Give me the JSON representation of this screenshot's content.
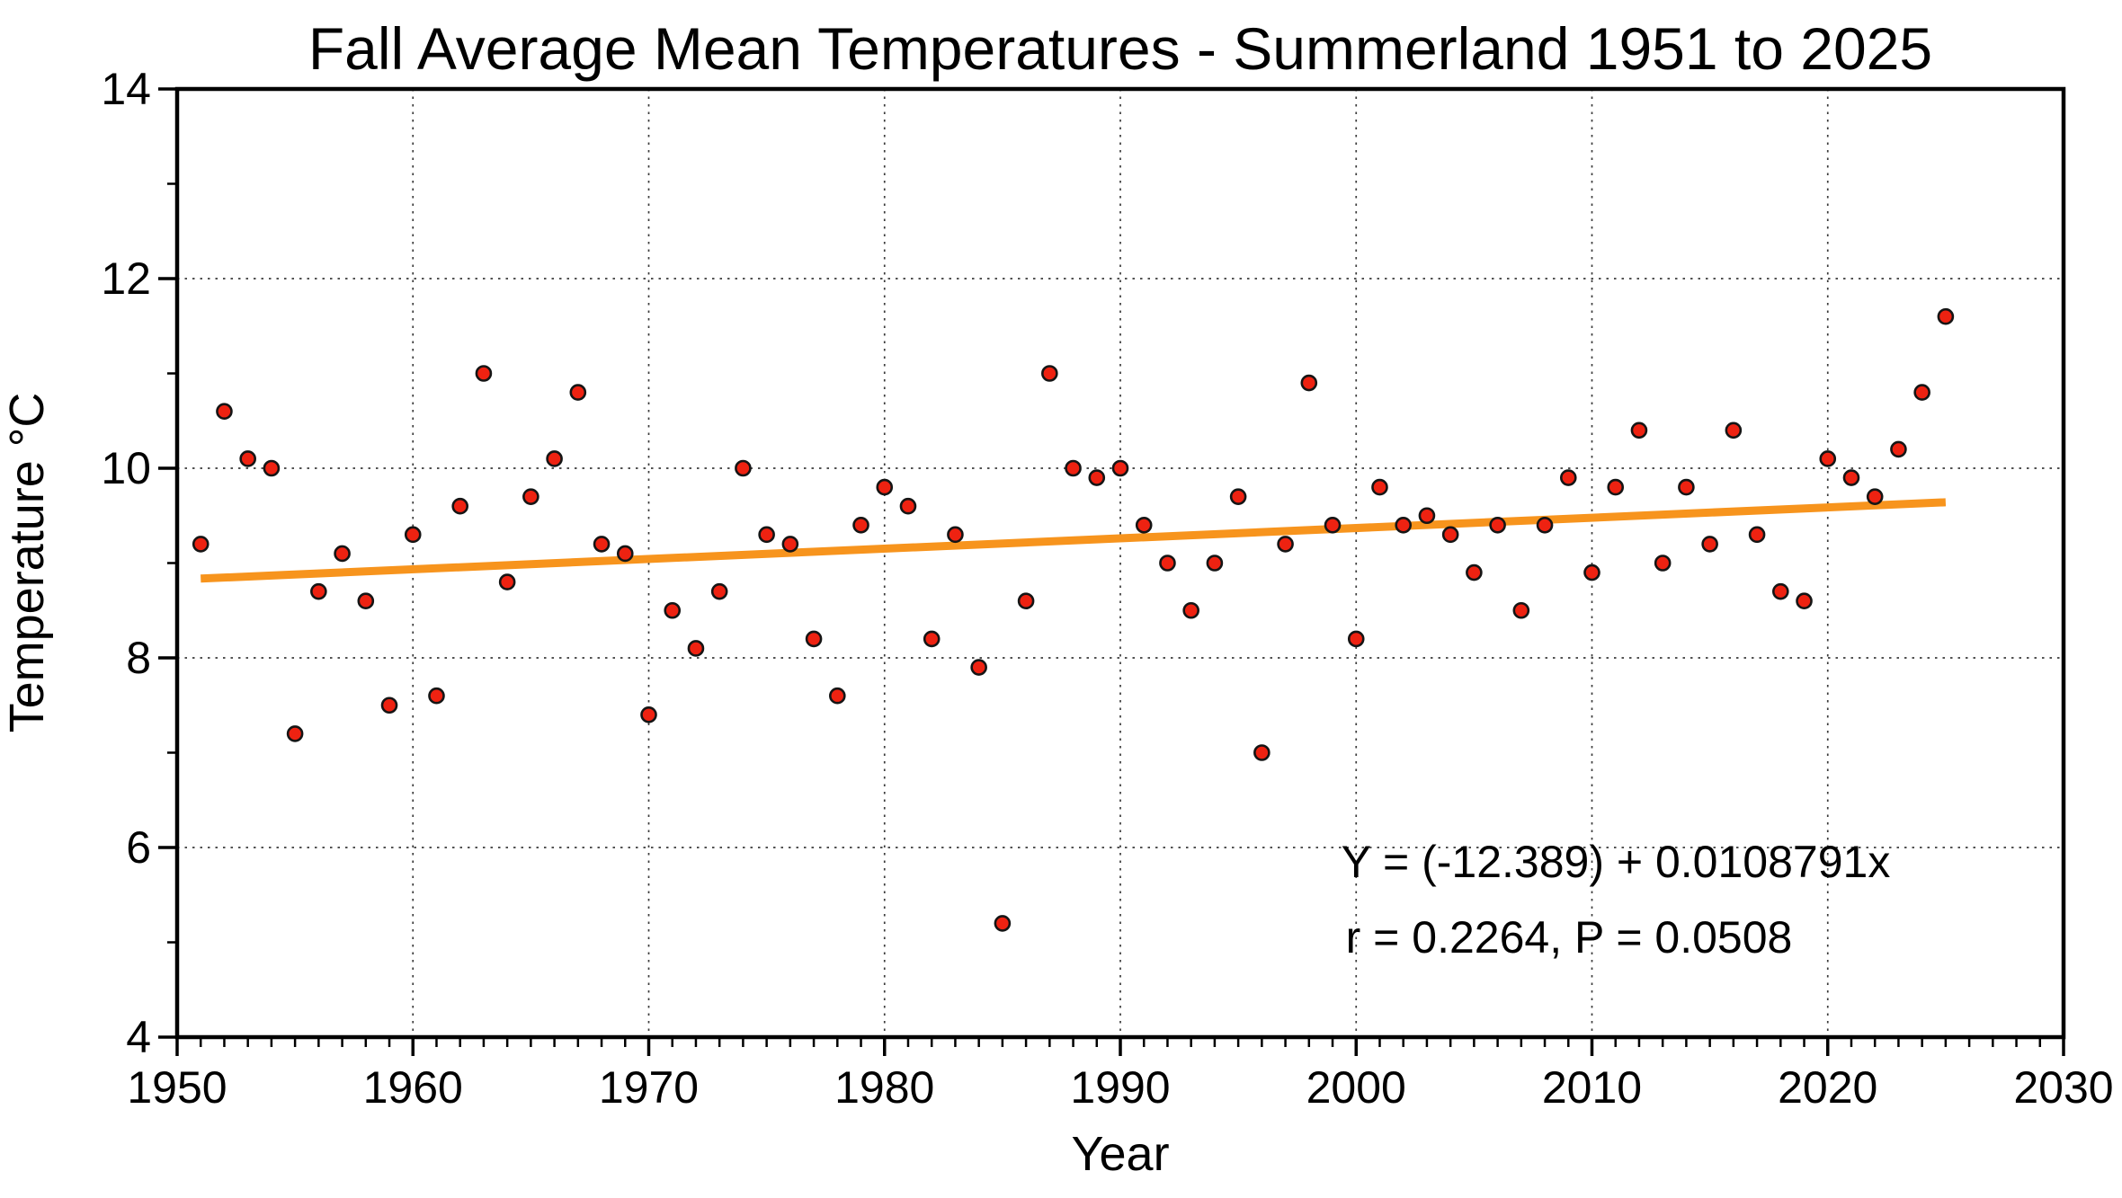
{
  "chart_data": {
    "type": "scatter",
    "title": "Fall Average Mean Temperatures - Summerland 1951 to 2025",
    "xlabel": "Year",
    "ylabel": "Temperature °C",
    "xlim": [
      1950,
      2030
    ],
    "ylim": [
      4,
      14
    ],
    "x_major_ticks": [
      1950,
      1960,
      1970,
      1980,
      1990,
      2000,
      2010,
      2020,
      2030
    ],
    "y_major_ticks": [
      4,
      6,
      8,
      10,
      12,
      14
    ],
    "x_minor_step": 1,
    "y_minor_step": 1,
    "grid": "on",
    "grid_x": [
      1960,
      1970,
      1980,
      1990,
      2000,
      2010,
      2020
    ],
    "grid_y": [
      6,
      8,
      10,
      12
    ],
    "years": [
      1951,
      1952,
      1953,
      1954,
      1955,
      1956,
      1957,
      1958,
      1959,
      1960,
      1961,
      1962,
      1963,
      1964,
      1965,
      1966,
      1967,
      1968,
      1969,
      1970,
      1971,
      1972,
      1973,
      1974,
      1975,
      1976,
      1977,
      1978,
      1979,
      1980,
      1981,
      1982,
      1983,
      1984,
      1985,
      1986,
      1987,
      1988,
      1989,
      1990,
      1991,
      1992,
      1993,
      1994,
      1995,
      1996,
      1997,
      1998,
      1999,
      2000,
      2001,
      2002,
      2003,
      2004,
      2005,
      2006,
      2007,
      2008,
      2009,
      2010,
      2011,
      2012,
      2013,
      2014,
      2015,
      2016,
      2017,
      2018,
      2019,
      2020,
      2021,
      2022,
      2023,
      2024,
      2025
    ],
    "temperatures": [
      9.2,
      10.6,
      10.1,
      10.0,
      7.2,
      8.7,
      9.1,
      8.6,
      7.5,
      9.3,
      7.6,
      9.6,
      11.0,
      8.8,
      9.7,
      10.1,
      10.8,
      9.2,
      9.1,
      7.4,
      8.5,
      8.1,
      8.7,
      10.0,
      9.3,
      9.2,
      8.2,
      7.6,
      9.4,
      9.8,
      9.6,
      8.2,
      9.3,
      7.9,
      5.2,
      8.6,
      11.0,
      10.0,
      9.9,
      10.0,
      9.4,
      9.0,
      8.5,
      9.0,
      9.7,
      7.0,
      9.2,
      10.9,
      9.4,
      8.2,
      9.8,
      9.4,
      9.5,
      9.3,
      8.9,
      9.4,
      8.5,
      9.4,
      9.9,
      8.9,
      9.8,
      10.4,
      9.0,
      9.8,
      9.2,
      10.4,
      9.3,
      8.7,
      8.6,
      10.1,
      9.9,
      9.7,
      10.2,
      10.8,
      11.6
    ],
    "trend": {
      "intercept": -12.389,
      "slope": 0.0108791,
      "x_start": 1951,
      "x_end": 2025
    },
    "annotation": {
      "line1": "Y = (-12.389) + 0.0108791x",
      "line2": "r = 0.2264, P = 0.0508"
    },
    "legend": "none",
    "colors": {
      "point_fill": "#ee2211",
      "point_stroke": "#151515",
      "trend": "#f7941d",
      "annotation": "#f7941d",
      "axis": "#000000",
      "grid": "#3a3a3a",
      "background": "#ffffff"
    }
  }
}
